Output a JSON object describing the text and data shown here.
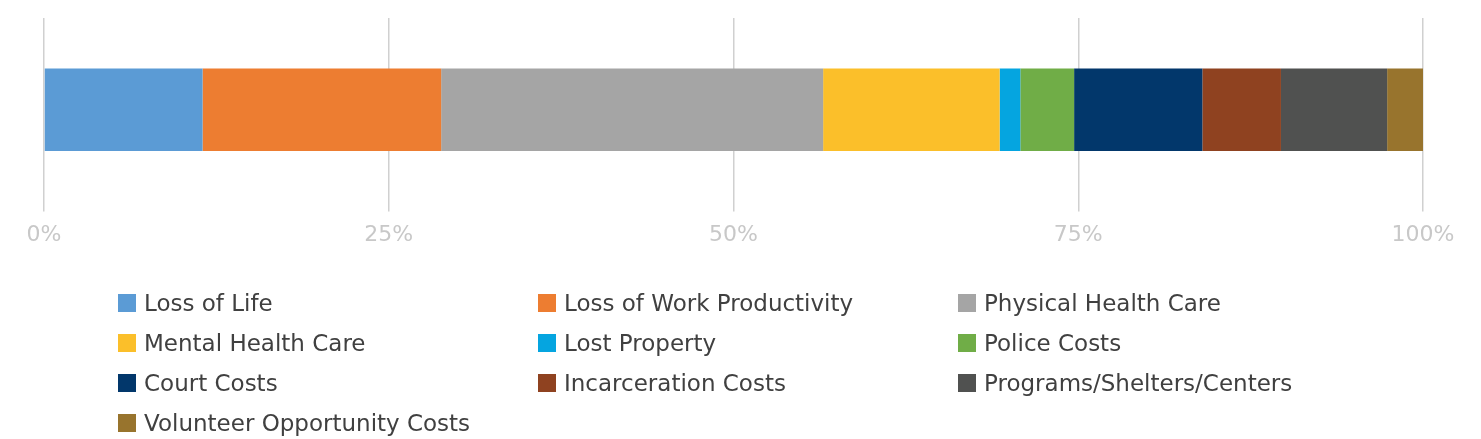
{
  "chart_data": {
    "type": "bar",
    "orientation": "horizontal",
    "stacked": true,
    "categories": [
      null
    ],
    "series": [
      {
        "name": "Loss of Life",
        "color": "#5b9bd5",
        "values": [
          11.5
        ]
      },
      {
        "name": "Loss of Work Productivity",
        "color": "#ed7d31",
        "values": [
          17.3
        ]
      },
      {
        "name": "Physical Health Care",
        "color": "#a5a5a5",
        "values": [
          27.7
        ]
      },
      {
        "name": "Mental Health Care",
        "color": "#fbbf2a",
        "values": [
          12.8
        ]
      },
      {
        "name": "Lost Property",
        "color": "#05a5e0",
        "values": [
          1.5
        ]
      },
      {
        "name": "Police Costs",
        "color": "#70ad47",
        "values": [
          3.9
        ]
      },
      {
        "name": "Court Costs",
        "color": "#02376b",
        "values": [
          9.3
        ]
      },
      {
        "name": "Incarceration Costs",
        "color": "#8f4220",
        "values": [
          5.7
        ]
      },
      {
        "name": "Programs/Shelters/Centers",
        "color": "#505150",
        "values": [
          7.7
        ]
      },
      {
        "name": "Volunteer Opportunity Costs",
        "color": "#98742d",
        "values": [
          2.6
        ]
      }
    ],
    "xlim": [
      0,
      100
    ],
    "xticks": [
      {
        "value": 0,
        "label": "0%"
      },
      {
        "value": 25,
        "label": "25%"
      },
      {
        "value": 50,
        "label": "50%"
      },
      {
        "value": 75,
        "label": "75%"
      },
      {
        "value": 100,
        "label": "100%"
      }
    ],
    "grid": "x",
    "legend": "bottom"
  }
}
